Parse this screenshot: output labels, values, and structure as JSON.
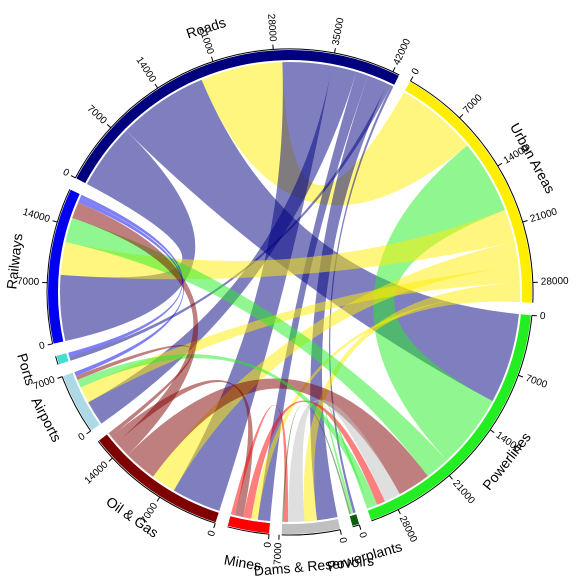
{
  "chart_data": {
    "type": "chord",
    "sectors": [
      {
        "name": "Roads",
        "color": "#00007f",
        "ticks": [
          0,
          7000,
          14000,
          21000,
          28000,
          35000,
          42000
        ]
      },
      {
        "name": "Urban Areas",
        "color": "#ffee00",
        "ticks": [
          0,
          7000,
          14000,
          21000,
          28000
        ]
      },
      {
        "name": "Powerlines",
        "color": "#22ee22",
        "ticks": [
          0,
          7000,
          14000,
          21000,
          28000
        ]
      },
      {
        "name": "Powerplants",
        "color": "#0b5e0b",
        "ticks": [
          0
        ]
      },
      {
        "name": "Dams & Reservoirs",
        "color": "#c0c0c0",
        "ticks": [
          0,
          7000
        ]
      },
      {
        "name": "Mines",
        "color": "#ff0000",
        "ticks": [
          0
        ]
      },
      {
        "name": "Oil & Gas",
        "color": "#7f0000",
        "ticks": [
          0,
          7000,
          14000
        ]
      },
      {
        "name": "Airports",
        "color": "#add8e6",
        "ticks": [
          0,
          7000
        ]
      },
      {
        "name": "Ports",
        "color": "#40e0d0"
      },
      {
        "name": "Railways",
        "color": "#0000ee",
        "ticks": [
          0,
          7000,
          14000
        ]
      }
    ],
    "links": [
      {
        "source": 0,
        "target": 9,
        "value": 8000
      },
      {
        "source": 0,
        "target": 2,
        "value": 11000
      },
      {
        "source": 1,
        "target": 0,
        "value": 10000
      },
      {
        "source": 0,
        "target": 6,
        "value": 6000
      },
      {
        "source": 0,
        "target": 7,
        "value": 3000
      },
      {
        "source": 0,
        "target": 5,
        "value": 1500
      },
      {
        "source": 0,
        "target": 4,
        "value": 2500
      },
      {
        "source": 0,
        "target": 8,
        "value": 500
      },
      {
        "source": 0,
        "target": 3,
        "value": 300
      },
      {
        "source": 2,
        "target": 1,
        "value": 9000
      },
      {
        "source": 1,
        "target": 9,
        "value": 4000
      },
      {
        "source": 1,
        "target": 6,
        "value": 3000
      },
      {
        "source": 1,
        "target": 7,
        "value": 2000
      },
      {
        "source": 1,
        "target": 4,
        "value": 1500
      },
      {
        "source": 1,
        "target": 5,
        "value": 800
      },
      {
        "source": 2,
        "target": 9,
        "value": 3000
      },
      {
        "source": 6,
        "target": 2,
        "value": 4000
      },
      {
        "source": 4,
        "target": 2,
        "value": 2000
      },
      {
        "source": 5,
        "target": 2,
        "value": 1000
      },
      {
        "source": 2,
        "target": 7,
        "value": 1000
      },
      {
        "source": 2,
        "target": 3,
        "value": 300
      },
      {
        "source": 6,
        "target": 9,
        "value": 2000
      },
      {
        "source": 6,
        "target": 5,
        "value": 1000
      },
      {
        "source": 6,
        "target": 7,
        "value": 500
      },
      {
        "source": 9,
        "target": 7,
        "value": 500
      },
      {
        "source": 9,
        "target": 8,
        "value": 500
      },
      {
        "source": 5,
        "target": 4,
        "value": 500
      },
      {
        "source": 3,
        "target": 4,
        "value": 200
      }
    ]
  }
}
